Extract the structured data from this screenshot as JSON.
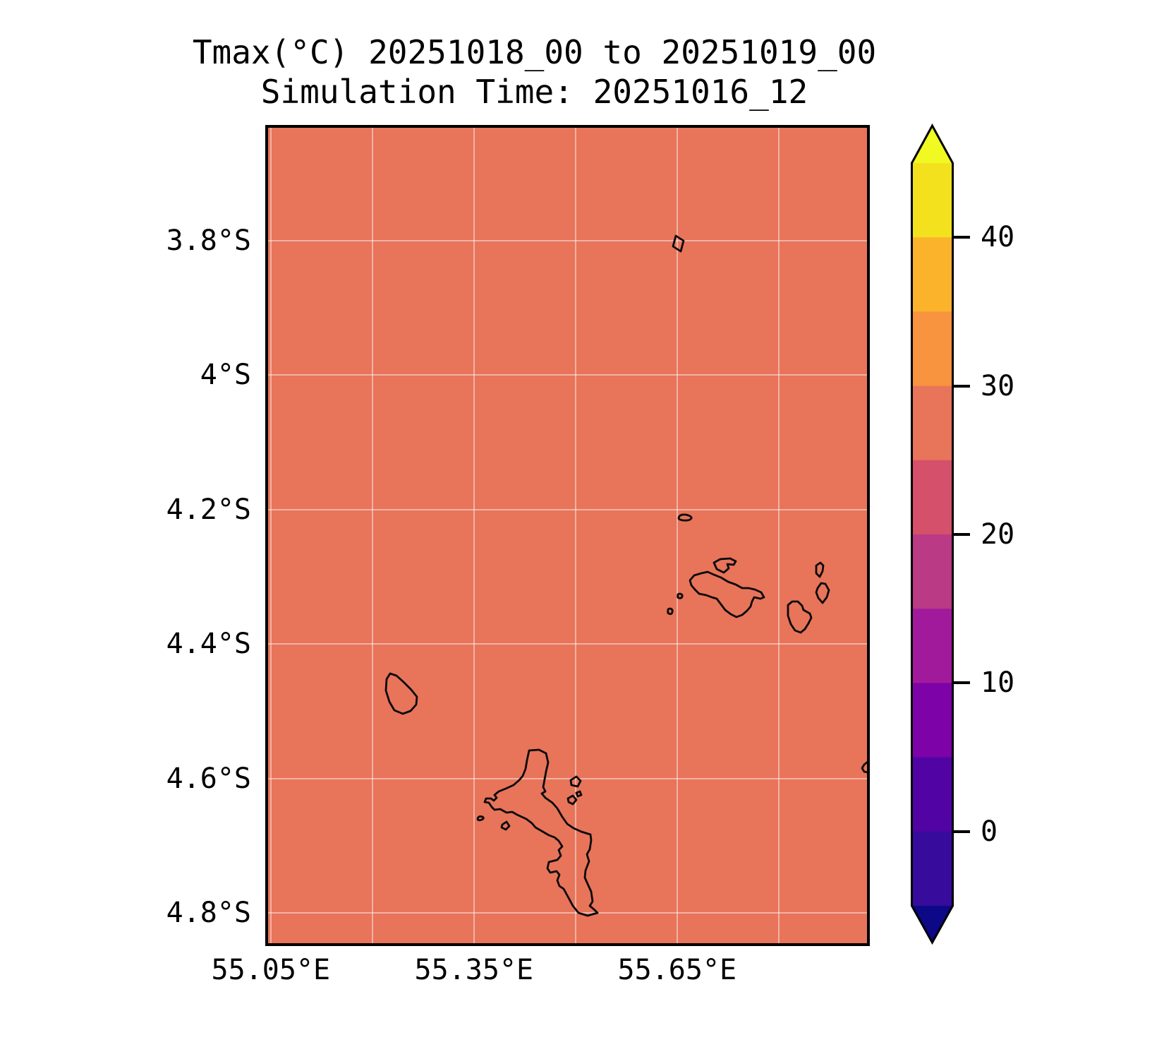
{
  "title": {
    "line1": "Tmax(°C) 20251018_00 to 20251019_00",
    "line2": "Simulation Time: 20251016_12"
  },
  "map": {
    "fill_color": "#e8745a",
    "coastline_color": "#0a0a0a",
    "gridline_lons": [
      55.05,
      55.2,
      55.35,
      55.5,
      55.65,
      55.8
    ],
    "gridline_lats": [
      3.8,
      4.0,
      4.2,
      4.4,
      4.6,
      4.8
    ],
    "x_ticks": [
      {
        "label": "55.05°E",
        "lon": 55.05
      },
      {
        "label": "55.35°E",
        "lon": 55.35
      },
      {
        "label": "55.65°E",
        "lon": 55.65
      }
    ],
    "y_ticks": [
      {
        "label": "3.8°S",
        "lat": 3.8
      },
      {
        "label": "4°S",
        "lat": 4.0
      },
      {
        "label": "4.2°S",
        "lat": 4.2
      },
      {
        "label": "4.4°S",
        "lat": 4.4
      },
      {
        "label": "4.6°S",
        "lat": 4.6
      },
      {
        "label": "4.8°S",
        "lat": 4.8
      }
    ]
  },
  "colorbar": {
    "ticks": [
      {
        "label": "40",
        "value": 40
      },
      {
        "label": "30",
        "value": 30
      },
      {
        "label": "20",
        "value": 20
      },
      {
        "label": "10",
        "value": 10
      },
      {
        "label": "0",
        "value": 0
      }
    ],
    "levels": [
      -5,
      0,
      5,
      10,
      15,
      20,
      25,
      30,
      35,
      40,
      45
    ],
    "band_colors_top_to_bottom": [
      "#f3e11e",
      "#fcb32c",
      "#f8933f",
      "#e8745a",
      "#d4506b",
      "#bb3a86",
      "#a21a9c",
      "#7d02a8",
      "#5104a3",
      "#370b9b"
    ],
    "over_arrow_color": "#f0f921",
    "under_arrow_color": "#0d0887"
  },
  "chart_data": {
    "type": "heatmap",
    "title": "Tmax(°C) 20251018_00 to 20251019_00",
    "subtitle": "Simulation Time: 20251016_12",
    "field": "Tmax (°C), daily maximum temperature on a lon-lat map",
    "x_tick_labels": [
      "55.05°E",
      "55.35°E",
      "55.65°E"
    ],
    "y_tick_labels": [
      "3.8°S",
      "4°S",
      "4.2°S",
      "4.4°S",
      "4.6°S",
      "4.8°S"
    ],
    "lon_range_deg_E": [
      55.05,
      55.93
    ],
    "lat_range_deg_S": [
      3.63,
      4.85
    ],
    "contour_levels_C": [
      -5,
      0,
      5,
      10,
      15,
      20,
      25,
      30,
      35,
      40,
      45
    ],
    "colormap": "plasma, discrete bands, colorbar extended with arrows on both ends",
    "values_summary": "uniform Tmax field in the 25-30 °C color band (salmon) over the entire domain",
    "overlay": "black coastline outlines of Seychelles islands (Mahé, Silhouette, Praslin, La Digue, Curieuse, Félicité, Aride, Denis and small islets)",
    "legend_position": "right vertical colorbar",
    "grid_on": true
  }
}
